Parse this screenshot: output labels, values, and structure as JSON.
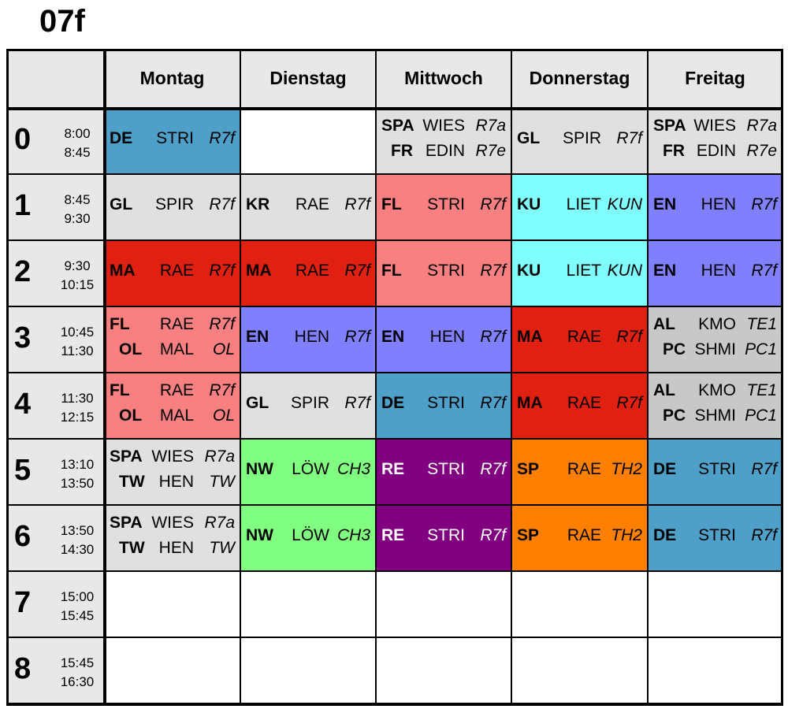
{
  "title": "07f",
  "days": [
    "Montag",
    "Dienstag",
    "Mittwoch",
    "Donnerstag",
    "Freitag"
  ],
  "periods": [
    {
      "num": "0",
      "start": "8:00",
      "end": "8:45"
    },
    {
      "num": "1",
      "start": "8:45",
      "end": "9:30"
    },
    {
      "num": "2",
      "start": "9:30",
      "end": "10:15"
    },
    {
      "num": "3",
      "start": "10:45",
      "end": "11:30"
    },
    {
      "num": "4",
      "start": "11:30",
      "end": "12:15"
    },
    {
      "num": "5",
      "start": "13:10",
      "end": "13:50"
    },
    {
      "num": "6",
      "start": "13:50",
      "end": "14:30"
    },
    {
      "num": "7",
      "start": "15:00",
      "end": "15:45"
    },
    {
      "num": "8",
      "start": "15:45",
      "end": "16:30"
    }
  ],
  "colors": {
    "DE": "#4fa0c8",
    "GL": "#e0e0e0",
    "KR": "#e0e0e0",
    "MA": "#e02010",
    "FL": "#f88080",
    "KU": "#80ffff",
    "EN": "#8080ff",
    "AL": "#c8c8c8",
    "NW": "#80ff80",
    "RE": "#800080",
    "SP": "#ff8000",
    "SPA": "#e0e0e0",
    "empty": "#ffffff"
  },
  "schedule": [
    [
      {
        "color": "DE",
        "lessons": [
          {
            "subject": "DE",
            "teacher": "STRI",
            "room": "R7f"
          }
        ]
      },
      {
        "color": "empty",
        "lessons": []
      },
      {
        "color": "SPA",
        "lessons": [
          {
            "subject": "SPA",
            "teacher": "WIES",
            "room": "R7a"
          },
          {
            "subject": "FR",
            "teacher": "EDIN",
            "room": "R7e"
          }
        ]
      },
      {
        "color": "GL",
        "lessons": [
          {
            "subject": "GL",
            "teacher": "SPIR",
            "room": "R7f"
          }
        ]
      },
      {
        "color": "SPA",
        "lessons": [
          {
            "subject": "SPA",
            "teacher": "WIES",
            "room": "R7a"
          },
          {
            "subject": "FR",
            "teacher": "EDIN",
            "room": "R7e"
          }
        ]
      }
    ],
    [
      {
        "color": "GL",
        "lessons": [
          {
            "subject": "GL",
            "teacher": "SPIR",
            "room": "R7f"
          }
        ]
      },
      {
        "color": "KR",
        "lessons": [
          {
            "subject": "KR",
            "teacher": "RAE",
            "room": "R7f"
          }
        ]
      },
      {
        "color": "FL",
        "lessons": [
          {
            "subject": "FL",
            "teacher": "STRI",
            "room": "R7f"
          }
        ]
      },
      {
        "color": "KU",
        "lessons": [
          {
            "subject": "KU",
            "teacher": "LIET",
            "room": "KUN"
          }
        ]
      },
      {
        "color": "EN",
        "lessons": [
          {
            "subject": "EN",
            "teacher": "HEN",
            "room": "R7f"
          }
        ]
      }
    ],
    [
      {
        "color": "MA",
        "lessons": [
          {
            "subject": "MA",
            "teacher": "RAE",
            "room": "R7f"
          }
        ]
      },
      {
        "color": "MA",
        "lessons": [
          {
            "subject": "MA",
            "teacher": "RAE",
            "room": "R7f"
          }
        ]
      },
      {
        "color": "FL",
        "lessons": [
          {
            "subject": "FL",
            "teacher": "STRI",
            "room": "R7f"
          }
        ]
      },
      {
        "color": "KU",
        "lessons": [
          {
            "subject": "KU",
            "teacher": "LIET",
            "room": "KUN"
          }
        ]
      },
      {
        "color": "EN",
        "lessons": [
          {
            "subject": "EN",
            "teacher": "HEN",
            "room": "R7f"
          }
        ]
      }
    ],
    [
      {
        "color": "FL",
        "lessons": [
          {
            "subject": "FL",
            "teacher": "RAE",
            "room": "R7f"
          },
          {
            "subject": "OL",
            "teacher": "MAL",
            "room": "OL"
          }
        ]
      },
      {
        "color": "EN",
        "lessons": [
          {
            "subject": "EN",
            "teacher": "HEN",
            "room": "R7f"
          }
        ]
      },
      {
        "color": "EN",
        "lessons": [
          {
            "subject": "EN",
            "teacher": "HEN",
            "room": "R7f"
          }
        ]
      },
      {
        "color": "MA",
        "lessons": [
          {
            "subject": "MA",
            "teacher": "RAE",
            "room": "R7f"
          }
        ]
      },
      {
        "color": "AL",
        "lessons": [
          {
            "subject": "AL",
            "teacher": "KMO",
            "room": "TE1"
          },
          {
            "subject": "PC",
            "teacher": "SHMI",
            "room": "PC1"
          }
        ]
      }
    ],
    [
      {
        "color": "FL",
        "lessons": [
          {
            "subject": "FL",
            "teacher": "RAE",
            "room": "R7f"
          },
          {
            "subject": "OL",
            "teacher": "MAL",
            "room": "OL"
          }
        ]
      },
      {
        "color": "GL",
        "lessons": [
          {
            "subject": "GL",
            "teacher": "SPIR",
            "room": "R7f"
          }
        ]
      },
      {
        "color": "DE",
        "lessons": [
          {
            "subject": "DE",
            "teacher": "STRI",
            "room": "R7f"
          }
        ]
      },
      {
        "color": "MA",
        "lessons": [
          {
            "subject": "MA",
            "teacher": "RAE",
            "room": "R7f"
          }
        ]
      },
      {
        "color": "AL",
        "lessons": [
          {
            "subject": "AL",
            "teacher": "KMO",
            "room": "TE1"
          },
          {
            "subject": "PC",
            "teacher": "SHMI",
            "room": "PC1"
          }
        ]
      }
    ],
    [
      {
        "color": "SPA",
        "lessons": [
          {
            "subject": "SPA",
            "teacher": "WIES",
            "room": "R7a"
          },
          {
            "subject": "TW",
            "teacher": "HEN",
            "room": "TW"
          }
        ]
      },
      {
        "color": "NW",
        "lessons": [
          {
            "subject": "NW",
            "teacher": "LÖW",
            "room": "CH3"
          }
        ]
      },
      {
        "color": "RE",
        "lessons": [
          {
            "subject": "RE",
            "teacher": "STRI",
            "room": "R7f"
          }
        ]
      },
      {
        "color": "SP",
        "lessons": [
          {
            "subject": "SP",
            "teacher": "RAE",
            "room": "TH2"
          }
        ]
      },
      {
        "color": "DE",
        "lessons": [
          {
            "subject": "DE",
            "teacher": "STRI",
            "room": "R7f"
          }
        ]
      }
    ],
    [
      {
        "color": "SPA",
        "lessons": [
          {
            "subject": "SPA",
            "teacher": "WIES",
            "room": "R7a"
          },
          {
            "subject": "TW",
            "teacher": "HEN",
            "room": "TW"
          }
        ]
      },
      {
        "color": "NW",
        "lessons": [
          {
            "subject": "NW",
            "teacher": "LÖW",
            "room": "CH3"
          }
        ]
      },
      {
        "color": "RE",
        "lessons": [
          {
            "subject": "RE",
            "teacher": "STRI",
            "room": "R7f"
          }
        ]
      },
      {
        "color": "SP",
        "lessons": [
          {
            "subject": "SP",
            "teacher": "RAE",
            "room": "TH2"
          }
        ]
      },
      {
        "color": "DE",
        "lessons": [
          {
            "subject": "DE",
            "teacher": "STRI",
            "room": "R7f"
          }
        ]
      }
    ],
    [
      {
        "color": "empty",
        "lessons": []
      },
      {
        "color": "empty",
        "lessons": []
      },
      {
        "color": "empty",
        "lessons": []
      },
      {
        "color": "empty",
        "lessons": []
      },
      {
        "color": "empty",
        "lessons": []
      }
    ],
    [
      {
        "color": "empty",
        "lessons": []
      },
      {
        "color": "empty",
        "lessons": []
      },
      {
        "color": "empty",
        "lessons": []
      },
      {
        "color": "empty",
        "lessons": []
      },
      {
        "color": "empty",
        "lessons": []
      }
    ]
  ]
}
